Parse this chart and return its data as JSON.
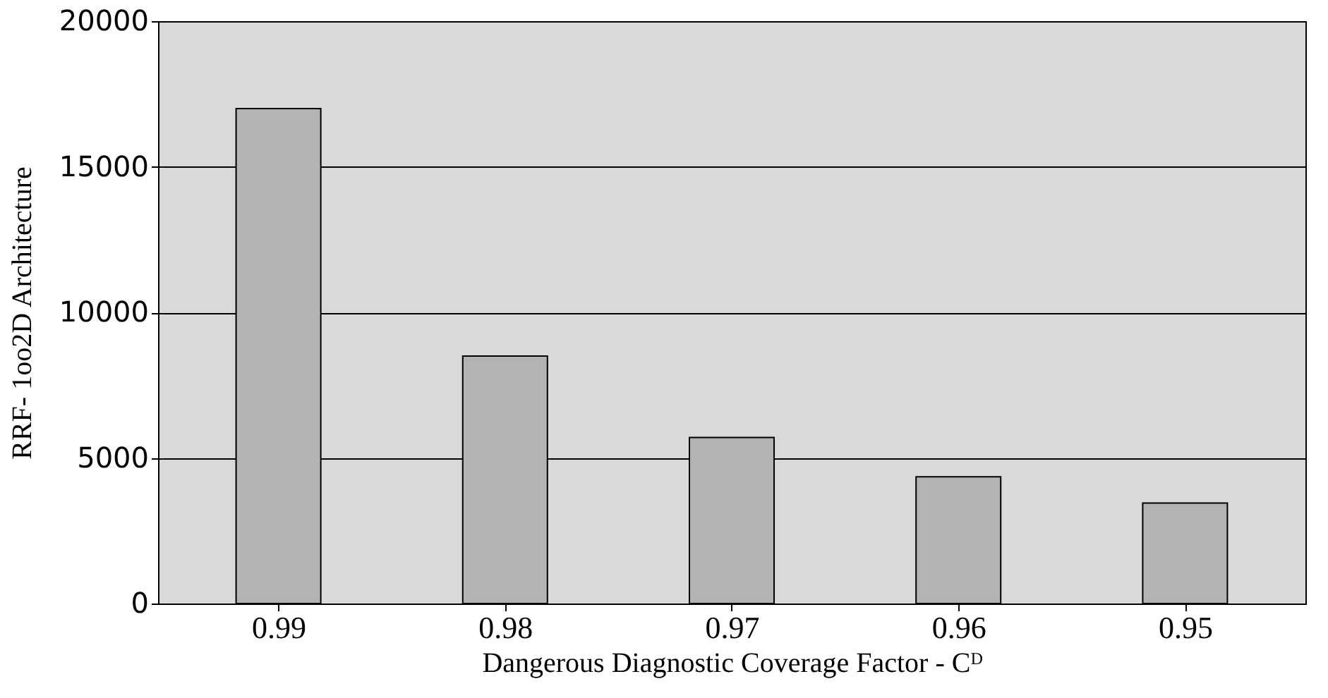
{
  "chart_data": {
    "type": "bar",
    "categories": [
      "0.99",
      "0.98",
      "0.97",
      "0.96",
      "0.95"
    ],
    "values": [
      17000,
      8500,
      5700,
      4350,
      3450
    ],
    "color": "#b3b3b3",
    "xlabel": "Dangerous Diagnostic Coverage Factor - Cᴰ",
    "ylabel": "RRF- 1oo2D Architecture",
    "ylim": [
      0,
      20000
    ],
    "yticks": [
      0,
      5000,
      10000,
      15000,
      20000
    ],
    "grid": "y"
  }
}
